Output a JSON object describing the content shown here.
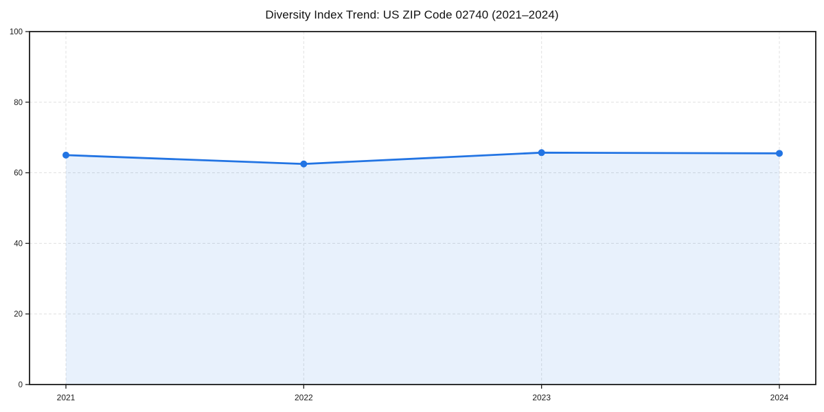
{
  "chart_data": {
    "type": "area",
    "title": "Diversity Index Trend: US ZIP Code 02740 (2021–2024)",
    "categories": [
      "2021",
      "2022",
      "2023",
      "2024"
    ],
    "values": [
      65.0,
      62.5,
      65.7,
      65.5
    ],
    "series": [
      {
        "name": "Diversity Index",
        "values": [
          65.0,
          62.5,
          65.7,
          65.5
        ]
      }
    ],
    "xlabel": "",
    "ylabel": "",
    "ylim": [
      0,
      100
    ],
    "yticks": [
      0,
      20,
      40,
      60,
      80,
      100
    ],
    "grid": true,
    "grid_style": "dashed",
    "legend": "none",
    "marker": "circle",
    "colors": {
      "line": "#2274e3",
      "marker": "#2274e3",
      "fill": "rgba(34,116,227,0.10)",
      "grid": "#e3e3e3",
      "axis": "#1a1a1a",
      "tick_label": "#1a1a1a",
      "title": "#111111",
      "background": "#ffffff"
    }
  }
}
